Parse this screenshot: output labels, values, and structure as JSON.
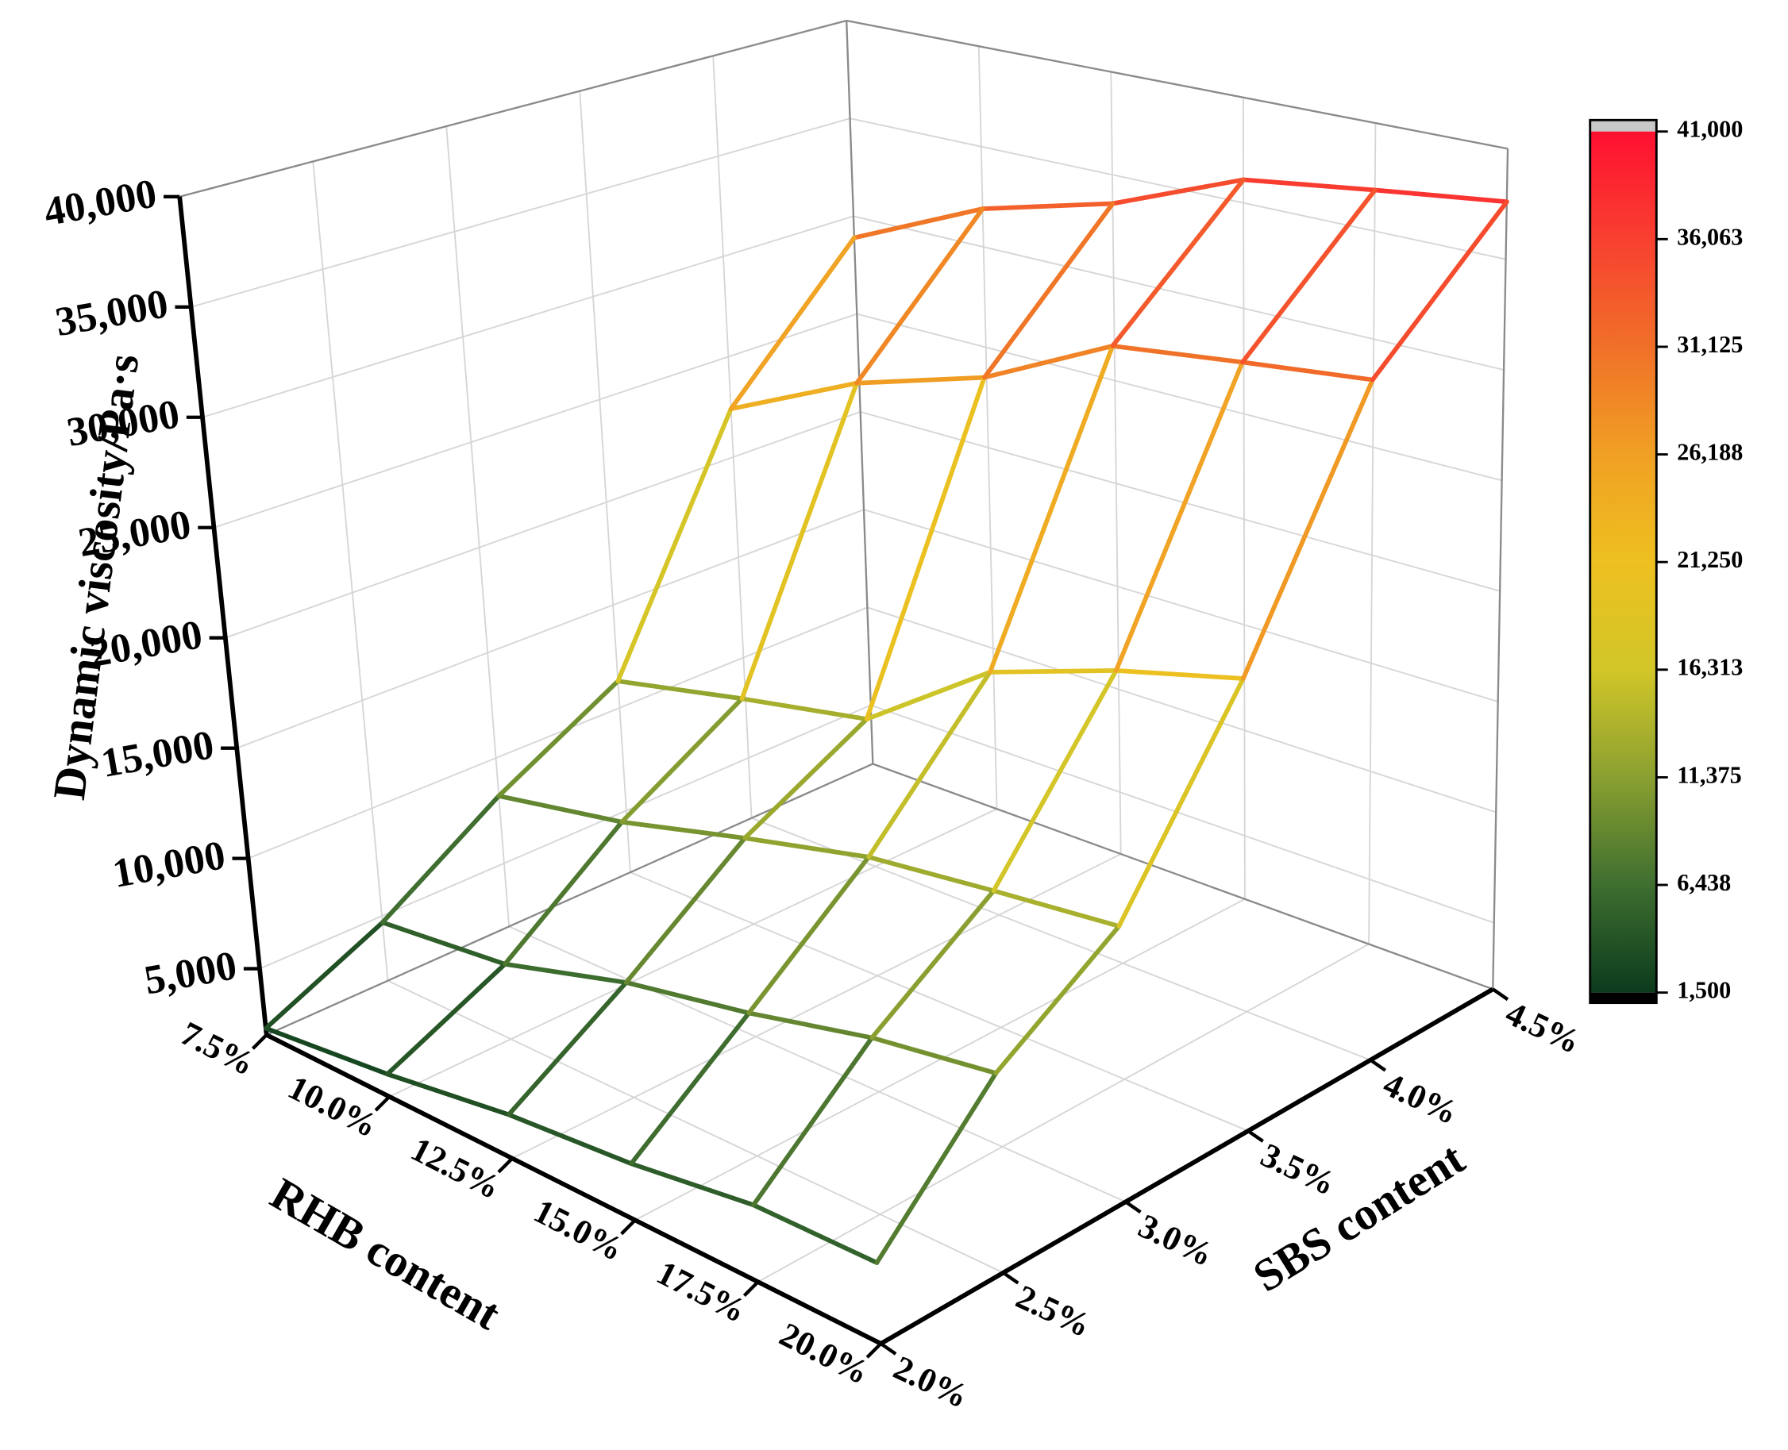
{
  "chart_data": {
    "type": "surface",
    "x_label": "RHB content",
    "y_label": "SBS content",
    "z_label": "Dynamic viscosity/Pa·s",
    "x_categories": [
      "7.5%",
      "10.0%",
      "12.5%",
      "15.0%",
      "17.5%",
      "20.0%"
    ],
    "y_categories": [
      "2.0%",
      "2.5%",
      "3.0%",
      "3.5%",
      "4.0%",
      "4.5%"
    ],
    "z": [
      [
        2300,
        4700,
        8200,
        11300,
        22400,
        28900
      ],
      [
        3000,
        5400,
        9400,
        12700,
        25500,
        31900
      ],
      [
        3900,
        7100,
        11000,
        13900,
        27500,
        33600
      ],
      [
        4400,
        8200,
        12400,
        18100,
        30600,
        36100
      ],
      [
        5200,
        9500,
        13100,
        20100,
        31400,
        36900
      ],
      [
        5300,
        10300,
        13700,
        21600,
        32100,
        37600
      ]
    ],
    "zlim": [
      2000,
      40000
    ],
    "zticks": [
      {
        "value": 5000,
        "label": "5,000"
      },
      {
        "value": 10000,
        "label": "10,000"
      },
      {
        "value": 15000,
        "label": "15,000"
      },
      {
        "value": 20000,
        "label": "20,000"
      },
      {
        "value": 25000,
        "label": "25,000"
      },
      {
        "value": 30000,
        "label": "30,000"
      },
      {
        "value": 35000,
        "label": "35,000"
      },
      {
        "value": 40000,
        "label": "40,000"
      }
    ],
    "grid": true,
    "colorbar": {
      "lim": [
        1500,
        41000
      ],
      "ticks": [
        {
          "value": 1500,
          "label": "1,500"
        },
        {
          "value": 6438,
          "label": "6,438"
        },
        {
          "value": 11375,
          "label": "11,375"
        },
        {
          "value": 16313,
          "label": "16,313"
        },
        {
          "value": 21250,
          "label": "21,250"
        },
        {
          "value": 26188,
          "label": "26,188"
        },
        {
          "value": 31125,
          "label": "31,125"
        },
        {
          "value": 36063,
          "label": "36,063"
        },
        {
          "value": 41000,
          "label": "41,000"
        }
      ],
      "colormap": [
        "#0b3b1c",
        "#3f6e30",
        "#8aa030",
        "#d2c628",
        "#eec020",
        "#f0a024",
        "#f07028",
        "#f84030",
        "#ff1030"
      ]
    }
  }
}
